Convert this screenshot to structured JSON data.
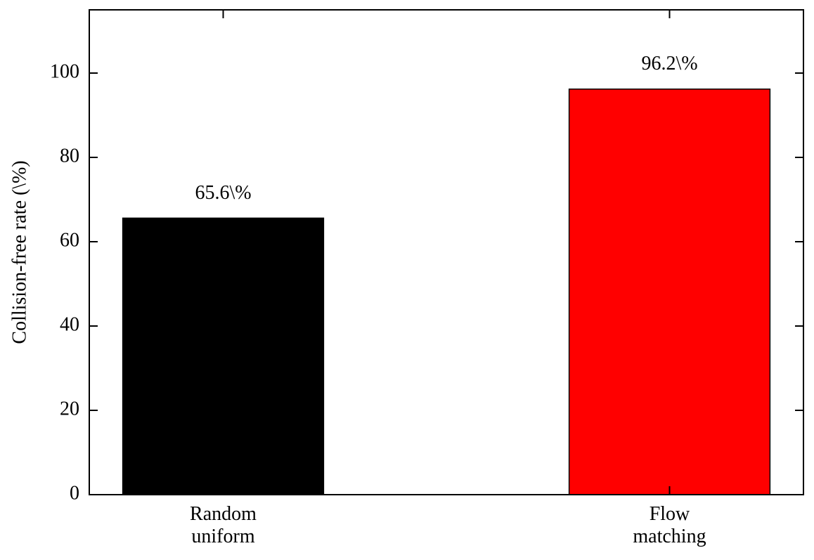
{
  "chart_data": {
    "type": "bar",
    "ylabel": "Collision-free rate (\\%)",
    "categories": [
      "Random\nuniform",
      "Flow\nmatching"
    ],
    "values": [
      65.6,
      96.2
    ],
    "value_labels": [
      "65.6\\%",
      "96.2\\%"
    ],
    "colors": [
      "#000000",
      "#ff0000"
    ],
    "ylim": [
      0,
      115
    ],
    "yticks": [
      0,
      20,
      40,
      60,
      80,
      100
    ]
  }
}
